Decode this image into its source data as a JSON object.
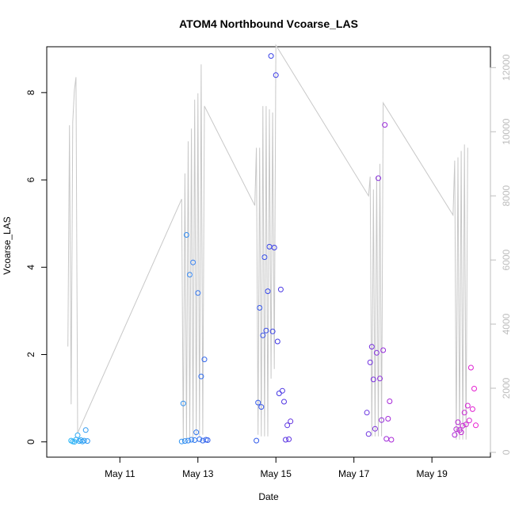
{
  "chart_data": {
    "type": "scatter",
    "title": "ATOM4 Northbound Vcoarse_LAS",
    "xlabel": "Date",
    "ylabel": "Vcoarse_LAS",
    "y2label": "",
    "xlim": [
      "May 09 03:00",
      "May 20 12:00"
    ],
    "ylim": [
      -0.35,
      9.05
    ],
    "y2lim": [
      -150,
      12650
    ],
    "x_ticks": [
      {
        "value": "May 11 00:00",
        "label": "May 11"
      },
      {
        "value": "May 13 00:00",
        "label": "May 13"
      },
      {
        "value": "May 15 00:00",
        "label": "May 15"
      },
      {
        "value": "May 17 00:00",
        "label": "May 17"
      },
      {
        "value": "May 19 00:00",
        "label": "May 19"
      }
    ],
    "y_ticks": [
      0,
      2,
      4,
      6,
      8
    ],
    "y2_ticks": [
      0,
      2000,
      4000,
      6000,
      8000,
      10000,
      12000
    ],
    "grid": false,
    "colors": {
      "series_line": "#c8c8c8",
      "right_axis": "#bdbdbd",
      "points_start": "#29b6f6",
      "points_mid": "#3a3ae6",
      "points_end": "#e91ecf"
    },
    "series": [
      {
        "kind": "points",
        "axis": "left",
        "points": [
          [
            "May 09 18:00",
            0.03
          ],
          [
            "May 09 19:00",
            0.01
          ],
          [
            "May 09 20:00",
            0.0
          ],
          [
            "May 09 21:00",
            0.05
          ],
          [
            "May 09 22:00",
            0.15
          ],
          [
            "May 09 23:00",
            0.02
          ],
          [
            "May 10 00:00",
            0.04
          ],
          [
            "May 10 01:00",
            0.01
          ],
          [
            "May 10 02:00",
            0.03
          ],
          [
            "May 10 03:00",
            0.27
          ],
          [
            "May 10 04:00",
            0.02
          ],
          [
            "May 12 14:00",
            0.01
          ],
          [
            "May 12 15:00",
            0.88
          ],
          [
            "May 12 16:00",
            0.02
          ],
          [
            "May 12 17:00",
            4.74
          ],
          [
            "May 12 18:00",
            0.03
          ],
          [
            "May 12 19:00",
            3.83
          ],
          [
            "May 12 20:00",
            0.05
          ],
          [
            "May 12 21:00",
            4.11
          ],
          [
            "May 12 22:00",
            0.04
          ],
          [
            "May 12 23:00",
            0.22
          ],
          [
            "May 13 00:00",
            3.41
          ],
          [
            "May 13 01:00",
            0.06
          ],
          [
            "May 13 02:00",
            1.5
          ],
          [
            "May 13 03:00",
            0.03
          ],
          [
            "May 13 04:00",
            1.89
          ],
          [
            "May 13 05:00",
            0.05
          ],
          [
            "May 13 06:00",
            0.04
          ],
          [
            "May 14 12:00",
            0.03
          ],
          [
            "May 14 13:00",
            0.9
          ],
          [
            "May 14 14:00",
            3.07
          ],
          [
            "May 14 15:00",
            0.8
          ],
          [
            "May 14 16:00",
            2.44
          ],
          [
            "May 14 17:00",
            4.23
          ],
          [
            "May 14 18:00",
            2.55
          ],
          [
            "May 14 19:00",
            3.45
          ],
          [
            "May 14 20:00",
            4.47
          ],
          [
            "May 14 21:00",
            8.84
          ],
          [
            "May 14 22:00",
            2.53
          ],
          [
            "May 14 23:00",
            4.45
          ],
          [
            "May 15 00:00",
            8.4
          ],
          [
            "May 15 01:00",
            2.3
          ],
          [
            "May 15 02:00",
            1.11
          ],
          [
            "May 15 03:00",
            3.49
          ],
          [
            "May 15 04:00",
            1.17
          ],
          [
            "May 15 05:00",
            0.92
          ],
          [
            "May 15 06:00",
            0.05
          ],
          [
            "May 15 07:00",
            0.38
          ],
          [
            "May 15 08:00",
            0.06
          ],
          [
            "May 15 09:00",
            0.47
          ],
          [
            "May 17 08:00",
            0.67
          ],
          [
            "May 17 09:00",
            0.18
          ],
          [
            "May 17 10:00",
            1.82
          ],
          [
            "May 17 11:00",
            2.18
          ],
          [
            "May 17 12:00",
            1.43
          ],
          [
            "May 17 13:00",
            0.3
          ],
          [
            "May 17 14:00",
            2.04
          ],
          [
            "May 17 15:00",
            6.04
          ],
          [
            "May 17 16:00",
            1.45
          ],
          [
            "May 17 17:00",
            0.5
          ],
          [
            "May 17 18:00",
            2.1
          ],
          [
            "May 17 19:00",
            7.26
          ],
          [
            "May 17 20:00",
            0.07
          ],
          [
            "May 17 21:00",
            0.53
          ],
          [
            "May 17 22:00",
            0.93
          ],
          [
            "May 17 23:00",
            0.05
          ],
          [
            "May 19 14:00",
            0.16
          ],
          [
            "May 19 15:00",
            0.29
          ],
          [
            "May 19 16:00",
            0.45
          ],
          [
            "May 19 17:00",
            0.27
          ],
          [
            "May 19 18:00",
            0.22
          ],
          [
            "May 19 19:00",
            0.37
          ],
          [
            "May 19 20:00",
            0.67
          ],
          [
            "May 19 21:00",
            0.4
          ],
          [
            "May 19 22:00",
            0.83
          ],
          [
            "May 19 23:00",
            0.49
          ],
          [
            "May 20 00:00",
            1.7
          ],
          [
            "May 20 01:00",
            0.75
          ],
          [
            "May 20 02:00",
            1.22
          ],
          [
            "May 20 03:00",
            0.38
          ]
        ]
      },
      {
        "kind": "line",
        "axis": "right",
        "color": "#c8c8c8",
        "points": [
          [
            "May 09 16:00",
            3300
          ],
          [
            "May 09 17:00",
            10200
          ],
          [
            "May 09 18:00",
            1500
          ],
          [
            "May 09 19:00",
            10300
          ],
          [
            "May 09 20:00",
            11300
          ],
          [
            "May 09 21:00",
            11700
          ],
          [
            "May 09 22:00",
            600
          ],
          [
            "May 12 14:00",
            7900
          ],
          [
            "May 12 15:00",
            350
          ],
          [
            "May 12 16:00",
            8700
          ],
          [
            "May 12 17:00",
            400
          ],
          [
            "May 12 18:00",
            9700
          ],
          [
            "May 12 19:00",
            450
          ],
          [
            "May 12 20:00",
            10100
          ],
          [
            "May 12 21:00",
            450
          ],
          [
            "May 12 22:00",
            11000
          ],
          [
            "May 12 23:00",
            500
          ],
          [
            "May 13 00:00",
            11200
          ],
          [
            "May 13 01:00",
            500
          ],
          [
            "May 13 02:00",
            12100
          ],
          [
            "May 13 03:00",
            550
          ],
          [
            "May 13 04:00",
            10800
          ],
          [
            "May 14 11:00",
            7700
          ],
          [
            "May 14 12:00",
            9500
          ],
          [
            "May 14 13:00",
            550
          ],
          [
            "May 14 14:00",
            9500
          ],
          [
            "May 14 15:00",
            500
          ],
          [
            "May 14 16:00",
            10800
          ],
          [
            "May 14 17:00",
            500
          ],
          [
            "May 14 18:00",
            10800
          ],
          [
            "May 14 19:00",
            500
          ],
          [
            "May 14 20:00",
            10700
          ],
          [
            "May 14 21:00",
            2300
          ],
          [
            "May 14 22:00",
            10600
          ],
          [
            "May 14 23:00",
            2600
          ],
          [
            "May 15 00:00",
            12700
          ],
          [
            "May 17 09:00",
            8000
          ],
          [
            "May 17 10:00",
            8600
          ],
          [
            "May 17 11:00",
            500
          ],
          [
            "May 17 12:00",
            8200
          ],
          [
            "May 17 13:00",
            500
          ],
          [
            "May 17 14:00",
            8600
          ],
          [
            "May 17 15:00",
            500
          ],
          [
            "May 17 16:00",
            9000
          ],
          [
            "May 17 17:00",
            500
          ],
          [
            "May 17 18:00",
            10900
          ],
          [
            "May 19 13:00",
            7400
          ],
          [
            "May 19 14:00",
            9100
          ],
          [
            "May 19 15:00",
            400
          ],
          [
            "May 19 16:00",
            9200
          ],
          [
            "May 19 17:00",
            400
          ],
          [
            "May 19 18:00",
            9400
          ],
          [
            "May 19 19:00",
            400
          ],
          [
            "May 19 20:00",
            9600
          ],
          [
            "May 19 21:00",
            400
          ],
          [
            "May 19 22:00",
            9500
          ]
        ]
      }
    ]
  }
}
